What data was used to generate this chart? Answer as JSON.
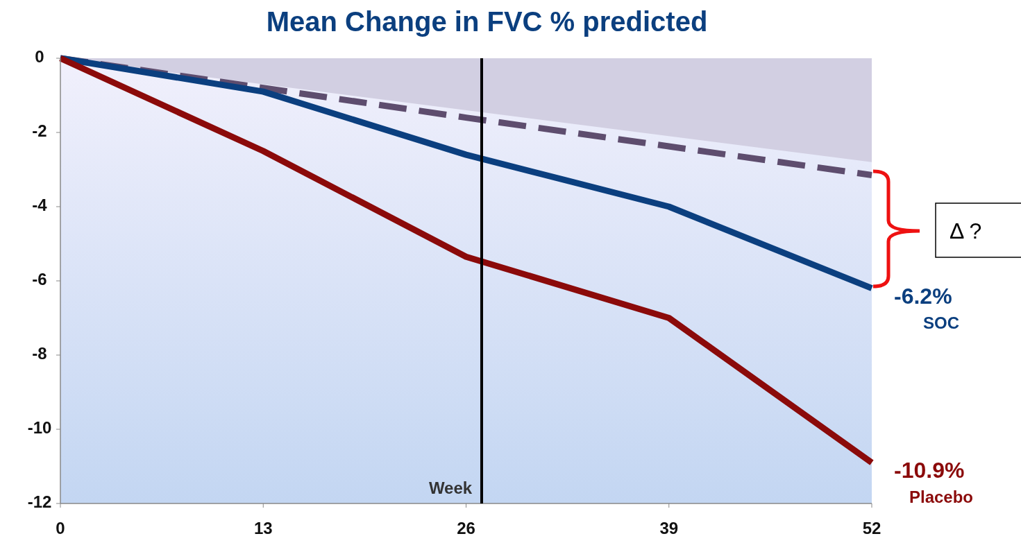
{
  "chart_data": {
    "type": "line",
    "title": "Mean Change in FVC % predicted",
    "xlabel": "Week",
    "x": [
      0,
      13,
      26,
      39,
      52
    ],
    "xlim": [
      0,
      52
    ],
    "xticks": [
      0,
      13,
      26,
      39,
      52
    ],
    "ylim": [
      -12,
      0
    ],
    "yticks": [
      0,
      -2,
      -4,
      -6,
      -8,
      -10,
      -12
    ],
    "marker": "none",
    "series": [
      {
        "type": "area",
        "color": "#d2cfe2",
        "x": [
          0,
          52
        ],
        "values": [
          0,
          -2.8
        ]
      },
      {
        "color": "#5e4d6e",
        "line_style": "dashed",
        "x": [
          0,
          26,
          52
        ],
        "values": [
          0,
          -1.6,
          -3.15
        ]
      },
      {
        "name": "SOC",
        "color": "#0b3f7f",
        "values": [
          0,
          -0.9,
          -2.6,
          -4.0,
          -6.2
        ],
        "value_labels": [
          null,
          null,
          null,
          null,
          "-6.2%"
        ]
      },
      {
        "name": "Placebo",
        "color": "#8b0a0a",
        "values": [
          0,
          -2.5,
          -5.35,
          -7.0,
          -10.9
        ],
        "value_labels": [
          null,
          null,
          null,
          null,
          "-10.9%"
        ]
      }
    ],
    "ref_lines": [
      {
        "axis": "x",
        "value": 27,
        "color": "#000000"
      }
    ],
    "annotations": [
      "Δ ?"
    ]
  }
}
